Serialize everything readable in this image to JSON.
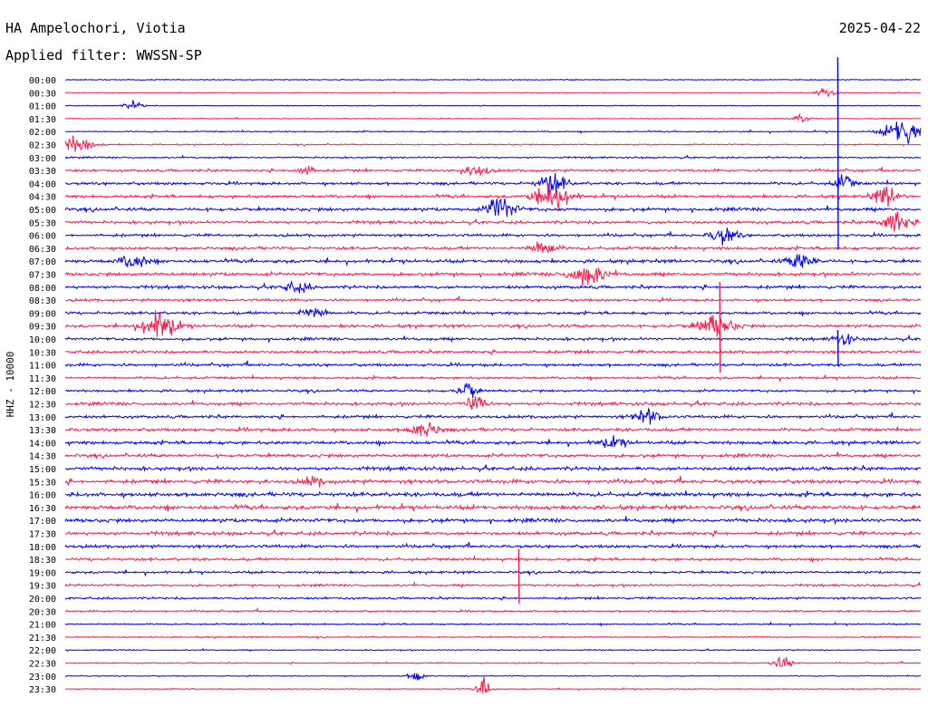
{
  "chart_data": {
    "type": "line",
    "title": "HA Ampelochori, Viotia",
    "subtitle": "Applied filter: WWSSN-SP",
    "date": "2025-04-22",
    "ylabel": "HHZ - 10000",
    "xlabel": "",
    "row_labels": [
      "00:00",
      "00:30",
      "01:00",
      "01:30",
      "02:00",
      "02:30",
      "03:00",
      "03:30",
      "04:00",
      "04:30",
      "05:00",
      "05:30",
      "06:00",
      "06:30",
      "07:00",
      "07:30",
      "08:00",
      "08:30",
      "09:00",
      "09:30",
      "10:00",
      "10:30",
      "11:00",
      "11:30",
      "12:00",
      "12:30",
      "13:00",
      "13:30",
      "14:00",
      "14:30",
      "15:00",
      "15:30",
      "16:00",
      "16:30",
      "17:00",
      "17:30",
      "18:00",
      "18:30",
      "19:00",
      "19:30",
      "20:00",
      "20:30",
      "21:00",
      "21:30",
      "22:00",
      "22:30",
      "23:00",
      "23:30"
    ],
    "colors": {
      "even": "#0000ff",
      "odd": "#ff1a4a",
      "text": "#000000"
    },
    "background_noise": [
      0.5,
      0.4,
      0.4,
      0.4,
      0.7,
      0.7,
      0.9,
      1.2,
      1.5,
      1.6,
      1.8,
      1.6,
      1.4,
      1.6,
      1.8,
      1.8,
      1.6,
      1.4,
      1.5,
      1.6,
      1.5,
      1.5,
      1.5,
      1.3,
      1.3,
      1.7,
      1.5,
      1.7,
      1.8,
      1.8,
      1.9,
      2.0,
      2.2,
      2.2,
      2.0,
      1.8,
      1.6,
      1.5,
      1.3,
      1.2,
      1.1,
      0.9,
      0.8,
      0.7,
      0.6,
      0.6,
      0.5,
      0.5
    ],
    "bursts": [
      {
        "row": 1,
        "t": 0.89,
        "amp": 6,
        "w": 0.01
      },
      {
        "row": 2,
        "t": 0.08,
        "amp": 5,
        "w": 0.01
      },
      {
        "row": 3,
        "t": 0.86,
        "amp": 5,
        "w": 0.01
      },
      {
        "row": 4,
        "t": 0.98,
        "amp": 16,
        "w": 0.02
      },
      {
        "row": 5,
        "t": 0.01,
        "amp": 10,
        "w": 0.02
      },
      {
        "row": 7,
        "t": 0.28,
        "amp": 6,
        "w": 0.01
      },
      {
        "row": 7,
        "t": 0.48,
        "amp": 6,
        "w": 0.015
      },
      {
        "row": 8,
        "t": 0.57,
        "amp": 12,
        "w": 0.015
      },
      {
        "row": 8,
        "t": 0.91,
        "amp": 9,
        "w": 0.01
      },
      {
        "row": 9,
        "t": 0.57,
        "amp": 16,
        "w": 0.02
      },
      {
        "row": 9,
        "t": 0.96,
        "amp": 10,
        "w": 0.015
      },
      {
        "row": 10,
        "t": 0.51,
        "amp": 14,
        "w": 0.015
      },
      {
        "row": 11,
        "t": 0.97,
        "amp": 12,
        "w": 0.015
      },
      {
        "row": 12,
        "t": 0.77,
        "amp": 10,
        "w": 0.015
      },
      {
        "row": 13,
        "t": 0.56,
        "amp": 8,
        "w": 0.015
      },
      {
        "row": 14,
        "t": 0.08,
        "amp": 9,
        "w": 0.015
      },
      {
        "row": 14,
        "t": 0.86,
        "amp": 10,
        "w": 0.015
      },
      {
        "row": 15,
        "t": 0.61,
        "amp": 12,
        "w": 0.02
      },
      {
        "row": 16,
        "t": 0.27,
        "amp": 6,
        "w": 0.015
      },
      {
        "row": 18,
        "t": 0.29,
        "amp": 6,
        "w": 0.015
      },
      {
        "row": 19,
        "t": 0.11,
        "amp": 16,
        "w": 0.02
      },
      {
        "row": 19,
        "t": 0.76,
        "amp": 12,
        "w": 0.02
      },
      {
        "row": 20,
        "t": 0.91,
        "amp": 8,
        "w": 0.01
      },
      {
        "row": 24,
        "t": 0.47,
        "amp": 9,
        "w": 0.01
      },
      {
        "row": 25,
        "t": 0.48,
        "amp": 12,
        "w": 0.01
      },
      {
        "row": 26,
        "t": 0.68,
        "amp": 8,
        "w": 0.015
      },
      {
        "row": 27,
        "t": 0.42,
        "amp": 9,
        "w": 0.015
      },
      {
        "row": 28,
        "t": 0.64,
        "amp": 6,
        "w": 0.015
      },
      {
        "row": 31,
        "t": 0.29,
        "amp": 5,
        "w": 0.01
      },
      {
        "row": 45,
        "t": 0.84,
        "amp": 7,
        "w": 0.012
      },
      {
        "row": 46,
        "t": 0.41,
        "amp": 7,
        "w": 0.008
      },
      {
        "row": 47,
        "t": 0.49,
        "amp": 10,
        "w": 0.008
      }
    ],
    "spikes": [
      {
        "row": 4,
        "t": 0.903,
        "up": 82,
        "down": 130
      },
      {
        "row": 20,
        "t": 0.903,
        "up": 10,
        "down": 30
      },
      {
        "row": 17,
        "t": 0.765,
        "up": 20,
        "down": 80
      },
      {
        "row": 39,
        "t": 0.53,
        "up": 40,
        "down": 20
      }
    ]
  }
}
